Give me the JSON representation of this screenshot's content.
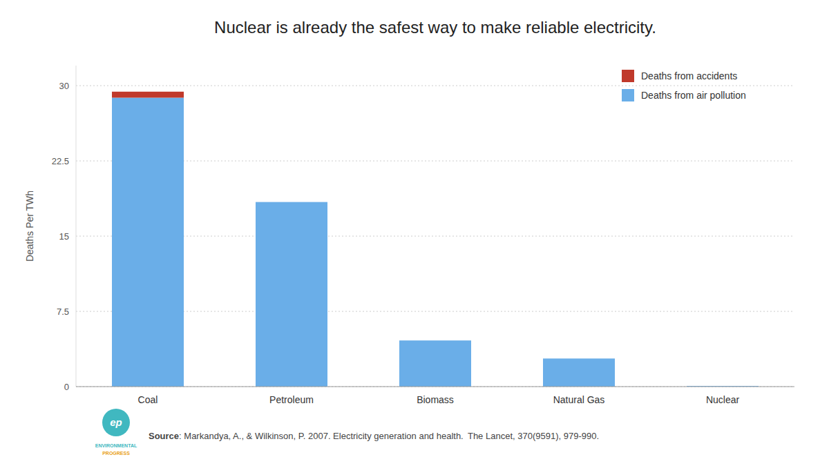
{
  "chart_data": {
    "type": "bar",
    "stacked": true,
    "title": "Nuclear is already the safest way to make reliable electricity.",
    "y_label": "Deaths Per TWh",
    "categories": [
      "Coal",
      "Petroleum",
      "Biomass",
      "Natural Gas",
      "Nuclear"
    ],
    "series": [
      {
        "name": "Deaths from air pollution",
        "color": "#6aaee8",
        "values": [
          28.8,
          18.4,
          4.6,
          2.8,
          0.07
        ]
      },
      {
        "name": "Deaths from accidents",
        "color": "#c0392b",
        "values": [
          0.6,
          0.0,
          0.0,
          0.0,
          0.0
        ]
      }
    ],
    "ylim": [
      0,
      32
    ],
    "yticks": [
      0,
      7.5,
      15,
      22.5,
      30
    ],
    "grid": true,
    "legend": "upper right",
    "annotations": [
      "Source",
      ": Markandya, A., & Wilkinson, P. 2007. Electricity generation and health.  The Lancet, 370(9591), 979-990.",
      "ep",
      "ENVIRONMENTAL",
      "PROGRESS"
    ]
  }
}
